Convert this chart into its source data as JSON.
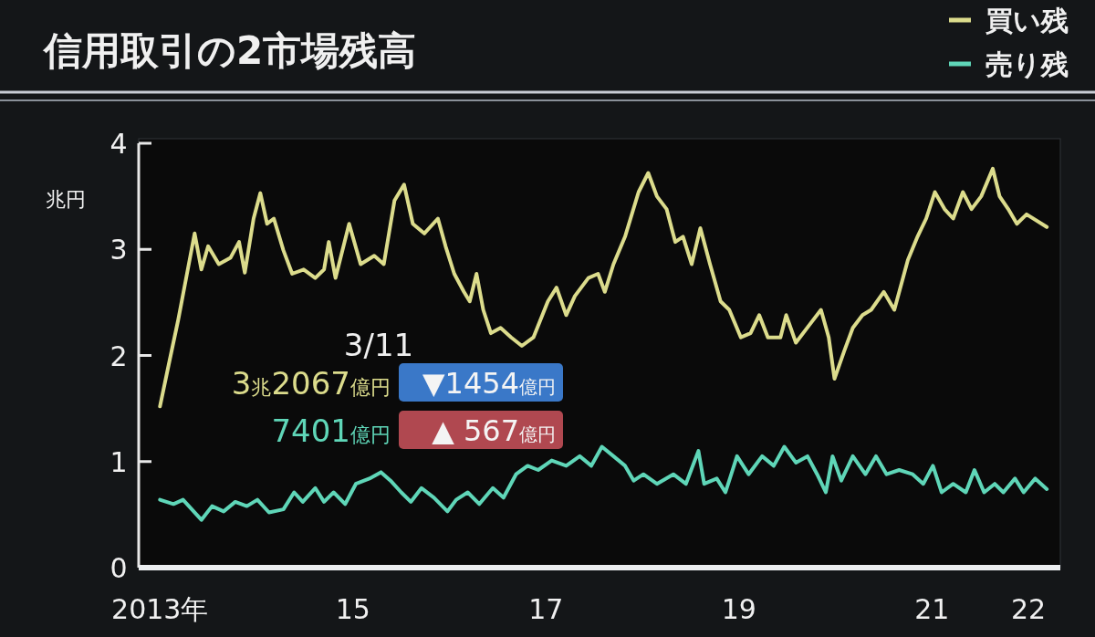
{
  "chart_data": {
    "type": "line",
    "title": "信用取引の2市場残高",
    "ylabel": "兆円",
    "xlim": [
      2012.78,
      2022.33
    ],
    "ylim": [
      0,
      4
    ],
    "yticks": [
      0,
      1,
      2,
      3,
      4
    ],
    "xticks": [
      {
        "value": 2013,
        "label": "2013年"
      },
      {
        "value": 2015,
        "label": "15"
      },
      {
        "value": 2017,
        "label": "17"
      },
      {
        "value": 2019,
        "label": "19"
      },
      {
        "value": 2021,
        "label": "21"
      },
      {
        "value": 2022,
        "label": "22"
      }
    ],
    "legend": "top right",
    "annotations": [
      "3/11",
      "3兆2067億円",
      "▼1454億円",
      "7401億円",
      "▲ 567億円"
    ],
    "series": [
      {
        "name": "買い残",
        "color": "#dcdc8c",
        "x": [
          2013.0,
          2013.09,
          2013.19,
          2013.28,
          2013.36,
          2013.43,
          2013.5,
          2013.61,
          2013.73,
          2013.82,
          2013.88,
          2013.97,
          2014.04,
          2014.11,
          2014.18,
          2014.28,
          2014.37,
          2014.49,
          2014.61,
          2014.7,
          2014.75,
          2014.82,
          2014.96,
          2015.08,
          2015.22,
          2015.32,
          2015.43,
          2015.53,
          2015.62,
          2015.74,
          2015.88,
          2015.96,
          2016.05,
          2016.15,
          2016.21,
          2016.28,
          2016.35,
          2016.43,
          2016.53,
          2016.64,
          2016.75,
          2016.87,
          2017.02,
          2017.11,
          2017.21,
          2017.3,
          2017.44,
          2017.54,
          2017.61,
          2017.7,
          2017.82,
          2017.96,
          2018.06,
          2018.15,
          2018.25,
          2018.34,
          2018.42,
          2018.51,
          2018.6,
          2018.7,
          2018.81,
          2018.9,
          2019.02,
          2019.12,
          2019.21,
          2019.3,
          2019.43,
          2019.49,
          2019.59,
          2019.74,
          2019.85,
          2019.93,
          2019.99,
          2020.09,
          2020.18,
          2020.28,
          2020.37,
          2020.5,
          2020.61,
          2020.75,
          2020.85,
          2020.94,
          2021.03,
          2021.13,
          2021.22,
          2021.32,
          2021.41,
          2021.51,
          2021.63,
          2021.7,
          2021.79,
          2021.88,
          2021.98,
          2022.19
        ],
        "values": [
          1.52,
          1.91,
          2.34,
          2.77,
          3.15,
          2.81,
          3.03,
          2.86,
          2.92,
          3.07,
          2.78,
          3.29,
          3.53,
          3.24,
          3.29,
          2.99,
          2.77,
          2.81,
          2.73,
          2.81,
          3.07,
          2.73,
          3.24,
          2.86,
          2.94,
          2.86,
          3.46,
          3.61,
          3.24,
          3.15,
          3.29,
          3.03,
          2.77,
          2.6,
          2.51,
          2.77,
          2.43,
          2.21,
          2.26,
          2.17,
          2.09,
          2.17,
          2.51,
          2.64,
          2.38,
          2.56,
          2.73,
          2.77,
          2.6,
          2.86,
          3.12,
          3.54,
          3.72,
          3.5,
          3.38,
          3.07,
          3.12,
          2.86,
          3.2,
          2.86,
          2.51,
          2.43,
          2.17,
          2.21,
          2.38,
          2.17,
          2.17,
          2.38,
          2.12,
          2.3,
          2.43,
          2.17,
          1.78,
          2.04,
          2.26,
          2.38,
          2.43,
          2.6,
          2.43,
          2.9,
          3.12,
          3.29,
          3.54,
          3.38,
          3.29,
          3.54,
          3.38,
          3.5,
          3.76,
          3.5,
          3.38,
          3.24,
          3.33,
          3.21
        ]
      },
      {
        "name": "売り残",
        "color": "#5fd6b8",
        "x": [
          2013.0,
          2013.14,
          2013.24,
          2013.33,
          2013.43,
          2013.54,
          2013.66,
          2013.78,
          2013.9,
          2014.01,
          2014.13,
          2014.28,
          2014.39,
          2014.48,
          2014.61,
          2014.7,
          2014.8,
          2014.92,
          2015.03,
          2015.17,
          2015.29,
          2015.39,
          2015.5,
          2015.6,
          2015.71,
          2015.84,
          2015.98,
          2016.07,
          2016.19,
          2016.31,
          2016.45,
          2016.56,
          2016.69,
          2016.81,
          2016.92,
          2017.06,
          2017.21,
          2017.35,
          2017.47,
          2017.58,
          2017.7,
          2017.82,
          2017.91,
          2018.01,
          2018.15,
          2018.32,
          2018.45,
          2018.58,
          2018.64,
          2018.77,
          2018.86,
          2018.98,
          2019.1,
          2019.24,
          2019.36,
          2019.47,
          2019.59,
          2019.71,
          2019.81,
          2019.9,
          2019.97,
          2020.06,
          2020.18,
          2020.31,
          2020.42,
          2020.53,
          2020.66,
          2020.8,
          2020.91,
          2021.01,
          2021.1,
          2021.22,
          2021.35,
          2021.44,
          2021.54,
          2021.65,
          2021.74,
          2021.86,
          2021.95,
          2022.07,
          2022.19
        ],
        "values": [
          0.64,
          0.6,
          0.64,
          0.55,
          0.45,
          0.58,
          0.53,
          0.62,
          0.58,
          0.64,
          0.52,
          0.55,
          0.71,
          0.62,
          0.75,
          0.62,
          0.71,
          0.6,
          0.79,
          0.84,
          0.9,
          0.82,
          0.71,
          0.62,
          0.75,
          0.66,
          0.53,
          0.64,
          0.71,
          0.6,
          0.75,
          0.66,
          0.88,
          0.96,
          0.92,
          1.01,
          0.96,
          1.05,
          0.96,
          1.14,
          1.05,
          0.96,
          0.82,
          0.88,
          0.79,
          0.88,
          0.79,
          1.1,
          0.79,
          0.84,
          0.71,
          1.05,
          0.88,
          1.05,
          0.96,
          1.14,
          0.99,
          1.05,
          0.88,
          0.71,
          1.05,
          0.82,
          1.05,
          0.88,
          1.05,
          0.88,
          0.92,
          0.88,
          0.79,
          0.96,
          0.71,
          0.79,
          0.71,
          0.92,
          0.71,
          0.79,
          0.71,
          0.84,
          0.71,
          0.84,
          0.74
        ]
      }
    ]
  }
}
